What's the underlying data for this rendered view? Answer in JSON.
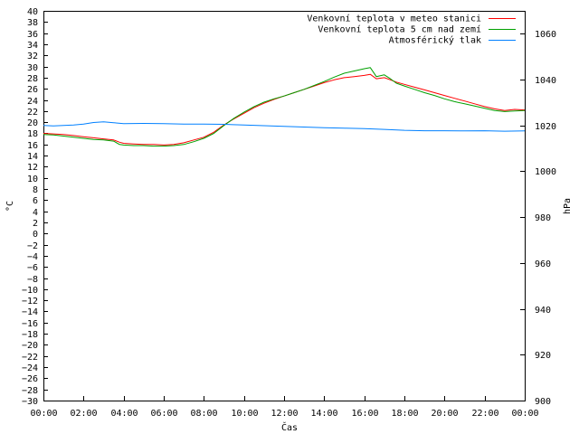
{
  "chart_data": {
    "type": "line",
    "title": "",
    "xlabel": "Čas",
    "ylabel": "°C",
    "y2label": "hPa",
    "x_ticks": [
      "00:00",
      "02:00",
      "04:00",
      "06:00",
      "08:00",
      "10:00",
      "12:00",
      "14:00",
      "16:00",
      "18:00",
      "20:00",
      "22:00",
      "00:00"
    ],
    "x_range_hours": [
      0,
      24
    ],
    "ylim": [
      -30,
      40
    ],
    "y_tick_step": 2,
    "y2lim": [
      900,
      1070
    ],
    "y2_ticks": [
      900,
      920,
      940,
      960,
      980,
      1000,
      1020,
      1040,
      1060
    ],
    "grid": false,
    "legend_position": "top-right",
    "series": [
      {
        "name": "Venkovní teplota v meteo stanici",
        "axis": "left",
        "color": "#ff0000",
        "x": [
          0,
          0.5,
          1,
          1.5,
          2,
          2.5,
          3,
          3.5,
          3.8,
          4,
          4.5,
          5,
          5.5,
          6,
          6.5,
          7,
          7.5,
          8,
          8.5,
          9,
          9.5,
          10,
          10.5,
          11,
          11.5,
          12,
          12.5,
          13,
          13.5,
          14,
          14.5,
          15,
          15.5,
          16,
          16.3,
          16.6,
          17,
          17.3,
          17.6,
          18,
          18.5,
          19,
          19.5,
          20,
          20.5,
          21,
          21.5,
          22,
          22.5,
          23,
          23.5,
          24
        ],
        "values": [
          18,
          17.9,
          17.8,
          17.6,
          17.4,
          17.2,
          17,
          16.8,
          16.4,
          16.2,
          16.1,
          16,
          16,
          15.9,
          16,
          16.3,
          16.8,
          17.3,
          18.2,
          19.5,
          20.6,
          21.6,
          22.6,
          23.4,
          24.1,
          24.7,
          25.3,
          25.9,
          26.5,
          27.1,
          27.6,
          28,
          28.2,
          28.4,
          28.6,
          27.8,
          28,
          27.6,
          27.2,
          26.8,
          26.3,
          25.8,
          25.3,
          24.8,
          24.3,
          23.8,
          23.3,
          22.8,
          22.4,
          22.1,
          22.3,
          22.2
        ]
      },
      {
        "name": "Venkovní teplota 5 cm nad zemí",
        "axis": "left",
        "color": "#00a000",
        "x": [
          0,
          0.5,
          1,
          1.5,
          2,
          2.5,
          3,
          3.5,
          3.8,
          4,
          4.5,
          5,
          5.5,
          6,
          6.5,
          7,
          7.5,
          8,
          8.5,
          9,
          9.5,
          10,
          10.5,
          11,
          11.5,
          12,
          12.5,
          13,
          13.5,
          14,
          14.5,
          15,
          15.5,
          16,
          16.3,
          16.6,
          17,
          17.3,
          17.6,
          18,
          18.5,
          19,
          19.5,
          20,
          20.5,
          21,
          21.5,
          22,
          22.5,
          23,
          23.5,
          24
        ],
        "values": [
          17.8,
          17.7,
          17.5,
          17.3,
          17.1,
          16.9,
          16.8,
          16.6,
          16,
          15.9,
          15.8,
          15.8,
          15.7,
          15.7,
          15.8,
          16,
          16.5,
          17.1,
          18,
          19.4,
          20.7,
          21.8,
          22.8,
          23.6,
          24.2,
          24.7,
          25.3,
          25.9,
          26.6,
          27.3,
          28.1,
          28.8,
          29.2,
          29.6,
          29.8,
          28.2,
          28.5,
          27.8,
          27,
          26.5,
          25.9,
          25.3,
          24.8,
          24.2,
          23.7,
          23.3,
          22.9,
          22.5,
          22.1,
          21.9,
          22,
          22.1
        ]
      },
      {
        "name": "Atmosférický tlak",
        "axis": "right",
        "color": "#0080ff",
        "x": [
          0,
          0.5,
          1,
          1.5,
          2,
          2.5,
          3,
          3.5,
          4,
          5,
          6,
          7,
          8,
          9,
          10,
          11,
          12,
          13,
          14,
          15,
          16,
          17,
          18,
          19,
          20,
          21,
          22,
          23,
          24
        ],
        "values": [
          1020,
          1019.8,
          1020,
          1020.2,
          1020.6,
          1021.3,
          1021.6,
          1021.2,
          1020.8,
          1020.9,
          1020.8,
          1020.6,
          1020.6,
          1020.5,
          1020.2,
          1019.9,
          1019.6,
          1019.3,
          1019,
          1018.8,
          1018.6,
          1018.3,
          1017.9,
          1017.7,
          1017.7,
          1017.6,
          1017.7,
          1017.5,
          1017.6
        ]
      }
    ]
  }
}
